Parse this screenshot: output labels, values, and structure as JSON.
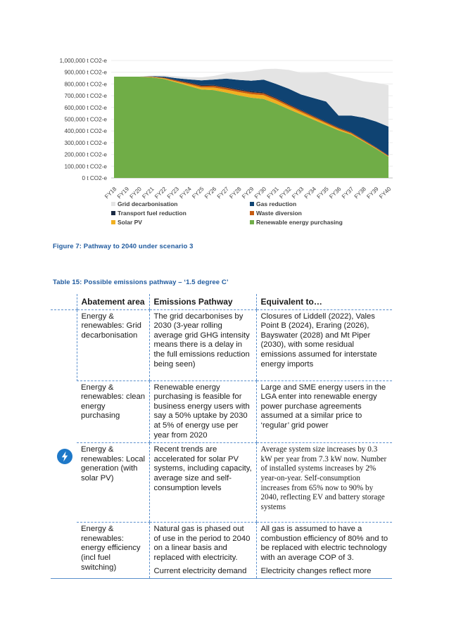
{
  "colors": {
    "grid": "#e4e4e4",
    "gas": "#0f4372",
    "transport": "#1a2a44",
    "waste": "#c55a11",
    "solar": "#f1b021",
    "renewable": "#70ad47",
    "caption": "#1f5a9e",
    "table_line": "#5a8fcc",
    "icon": "#1e78c8"
  },
  "chart_data": {
    "type": "area",
    "stacked": true,
    "ylim": [
      0,
      1000000
    ],
    "y_tick_values": [
      0,
      100000,
      200000,
      300000,
      400000,
      500000,
      600000,
      700000,
      800000,
      900000,
      1000000
    ],
    "y_tick_labels": [
      "0 t CO2-e",
      "100,000 t CO2-e",
      "200,000 t CO2-e",
      "300,000 t CO2-e",
      "400,000 t CO2-e",
      "500,000 t CO2-e",
      "600,000 t CO2-e",
      "700,000 t CO2-e",
      "800,000 t CO2-e",
      "900,000 t CO2-e",
      "1,000,000 t CO2-e"
    ],
    "categories": [
      "FY18",
      "FY19",
      "FY20",
      "FY21",
      "FY22",
      "FY23",
      "FY24",
      "FY25",
      "FY26",
      "FY27",
      "FY28",
      "FY29",
      "FY30",
      "FY31",
      "FY32",
      "FY33",
      "FY34",
      "FY35",
      "FY36",
      "FY37",
      "FY38",
      "FY39",
      "FY40"
    ],
    "series": [
      {
        "name": "Renewable energy purchasing",
        "color_key": "renewable",
        "values": [
          862000,
          862000,
          862000,
          856000,
          843000,
          813000,
          783000,
          753000,
          748000,
          727000,
          703000,
          683000,
          672000,
          632000,
          585000,
          540000,
          495000,
          450000,
          405000,
          370000,
          310000,
          248000,
          180000
        ]
      },
      {
        "name": "Solar PV",
        "color_key": "solar",
        "values": [
          0,
          0,
          0,
          3000,
          5000,
          9000,
          14000,
          18000,
          22000,
          25000,
          28000,
          30000,
          32000,
          28000,
          24000,
          20000,
          17000,
          14000,
          11000,
          8000,
          6000,
          4000,
          3000
        ]
      },
      {
        "name": "Waste diversion",
        "color_key": "waste",
        "values": [
          0,
          0,
          0,
          3000,
          5000,
          8000,
          11000,
          13000,
          15000,
          16000,
          16000,
          16000,
          16000,
          15000,
          14000,
          13000,
          12000,
          11000,
          10000,
          9000,
          8000,
          7000,
          6000
        ]
      },
      {
        "name": "Transport fuel reduction",
        "color_key": "transport",
        "values": [
          0,
          0,
          0,
          2000,
          3000,
          5000,
          6000,
          7000,
          8000,
          8000,
          8000,
          9000,
          9000,
          8000,
          8000,
          7000,
          6000,
          5000,
          5000,
          4000,
          3000,
          3000,
          3000
        ]
      },
      {
        "name": "Gas reduction",
        "color_key": "gas",
        "values": [
          0,
          0,
          0,
          2000,
          8000,
          15000,
          25000,
          40000,
          45000,
          70000,
          80000,
          90000,
          108000,
          117000,
          129000,
          130000,
          150000,
          170000,
          100000,
          140000,
          186000,
          218000,
          245000
        ]
      },
      {
        "name": "Grid decarbonisation",
        "color_key": "grid",
        "values": [
          0,
          0,
          0,
          5000,
          10000,
          15000,
          20000,
          25000,
          30000,
          45000,
          65000,
          82000,
          90000,
          130000,
          160000,
          185000,
          215000,
          250000,
          340000,
          320000,
          310000,
          330000,
          353000
        ]
      }
    ],
    "legend": [
      {
        "label": "Grid decarbonisation",
        "color_key": "grid"
      },
      {
        "label": "Gas reduction",
        "color_key": "gas"
      },
      {
        "label": "Transport fuel reduction",
        "color_key": "transport"
      },
      {
        "label": "Waste diversion",
        "color_key": "waste"
      },
      {
        "label": "Solar PV",
        "color_key": "solar"
      },
      {
        "label": "Renewable energy purchasing",
        "color_key": "renewable"
      }
    ],
    "legend_position": "bottom"
  },
  "figure_caption": "Figure 7: Pathway to 2040 under scenario 3",
  "table_caption": "Table 15: Possible emissions pathway – ‘1.5 degree C’",
  "table": {
    "icon": "lightning-bolt-icon",
    "headers": [
      "Abatement area",
      "Emissions Pathway",
      "Equivalent to…"
    ],
    "rows": [
      {
        "area": "Energy & renewables: Grid decarbonisation",
        "pathway": "The grid decarbonises by 2030 (3-year rolling average grid GHG intensity means there is a delay in the full emissions reduction being seen)",
        "equivalent": "Closures of Liddell (2022), Vales Point B (2024), Eraring (2026), Bayswater (2028) and Mt Piper (2030), with some residual emissions assumed for interstate energy imports"
      },
      {
        "area": "Energy & renewables: clean energy purchasing",
        "pathway": "Renewable energy purchasing is feasible for business energy users with say a 50% uptake by 2030 at 5% of energy use per year from 2020",
        "equivalent": "Large and SME energy users in the LGA enter into renewable energy power purchase agreements assumed at a similar price to ‘regular’ grid power"
      },
      {
        "area": "Energy & renewables: Local generation (with solar PV)",
        "pathway": "Recent trends are accelerated for solar PV systems, including capacity, average size and self-consumption levels",
        "equivalent": "Average system size increases by 0.3 kW per year from 7.3 kW now. Number of installed systems increases by 2% year-on-year. Self-consumption increases from 65% now to 90% by 2040, reflecting EV and battery storage systems"
      },
      {
        "area": "Energy & renewables: energy efficiency (incl fuel switching)",
        "pathway": "Natural gas is phased out of use in the period to 2040 on a linear basis and replaced with electricity.",
        "pathway_2": "Current electricity demand",
        "equivalent": "All gas is assumed to have a combustion efficiency of 80% and to be replaced with electric technology with an average COP of 3.",
        "equivalent_2": "Electricity changes reflect more"
      }
    ]
  }
}
